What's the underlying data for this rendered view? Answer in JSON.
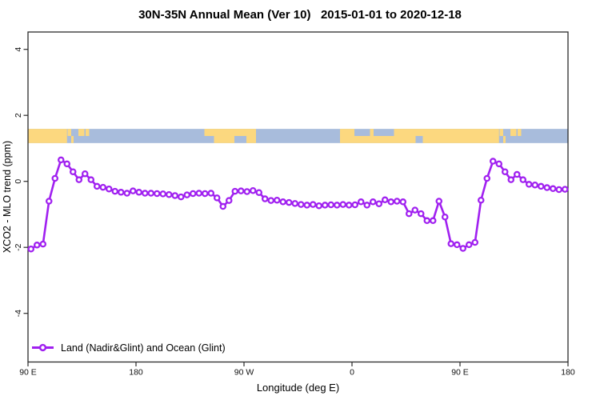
{
  "title": "30N-35N Annual Mean (Ver 10)   2015-01-01 to 2020-12-18",
  "axes": {
    "x_label": "Longitude (deg E)",
    "y_label": "XCO2 - MLO trend (ppm)"
  },
  "legend": {
    "label": "Land (Nadir&Glint) and Ocean (Glint)"
  },
  "colors": {
    "line": "#A020F0",
    "marker_fill": "#FFFFFF",
    "land": "#FCD87F",
    "ocean": "#A8BCDC",
    "axis": "#2B2B2B",
    "text": "#000000"
  },
  "chart_data": {
    "type": "line",
    "title": "30N-35N Annual Mean (Ver 10)   2015-01-01 to 2020-12-18",
    "xlabel": "Longitude (deg E)",
    "ylabel": "XCO2 - MLO trend (ppm)",
    "xlim": [
      90,
      540
    ],
    "ylim": [
      -5.4,
      4.5
    ],
    "x_tick_positions": [
      90,
      180,
      270,
      360,
      450,
      540
    ],
    "x_tick_labels": [
      "90 E",
      "180",
      "90 W",
      "0",
      "90 E",
      "180"
    ],
    "y_ticks": [
      -4,
      -2,
      0,
      2,
      4
    ],
    "grid": false,
    "legend_position": "bottom-left",
    "x_start_deg_east": 92.5,
    "x_step_deg": 5,
    "marker": "open-circle",
    "series": [
      {
        "name": "Land (Nadir&Glint) and Ocean (Glint)",
        "values": [
          -2.05,
          -1.93,
          -1.9,
          -0.6,
          0.09,
          0.65,
          0.53,
          0.29,
          0.05,
          0.23,
          0.05,
          -0.15,
          -0.18,
          -0.23,
          -0.3,
          -0.33,
          -0.36,
          -0.29,
          -0.33,
          -0.36,
          -0.36,
          -0.37,
          -0.38,
          -0.4,
          -0.43,
          -0.47,
          -0.41,
          -0.37,
          -0.36,
          -0.37,
          -0.36,
          -0.5,
          -0.76,
          -0.58,
          -0.3,
          -0.29,
          -0.31,
          -0.28,
          -0.34,
          -0.53,
          -0.58,
          -0.57,
          -0.62,
          -0.64,
          -0.67,
          -0.7,
          -0.72,
          -0.7,
          -0.74,
          -0.72,
          -0.71,
          -0.72,
          -0.7,
          -0.72,
          -0.71,
          -0.62,
          -0.72,
          -0.62,
          -0.68,
          -0.56,
          -0.62,
          -0.6,
          -0.62,
          -0.98,
          -0.87,
          -0.98,
          -1.19,
          -1.19,
          -0.6,
          -1.08,
          -1.89,
          -1.92,
          -2.03,
          -1.92,
          -1.85,
          -0.57,
          0.09,
          0.61,
          0.53,
          0.29,
          0.05,
          0.21,
          0.05,
          -0.09,
          -0.11,
          -0.15,
          -0.19,
          -0.22,
          -0.25,
          -0.24
        ]
      }
    ],
    "map_band": {
      "description": "coastline strip for 30N-35N latitude band, top=35N bottom=30N",
      "y_range": [
        1.16,
        1.59
      ],
      "ocean_color": "#A8BCDC",
      "land_color": "#FCD87F",
      "land_segments": [
        {
          "from": 90,
          "to": 122.5,
          "part": "full"
        },
        {
          "from": 123,
          "to": 126,
          "part": "top"
        },
        {
          "from": 126,
          "to": 128,
          "part": "bottom"
        },
        {
          "from": 132,
          "to": 137,
          "part": "top"
        },
        {
          "from": 138,
          "to": 141,
          "part": "top"
        },
        {
          "from": 237,
          "to": 241,
          "part": "top"
        },
        {
          "from": 241,
          "to": 280,
          "part": "top"
        },
        {
          "from": 245,
          "to": 262,
          "part": "bottom"
        },
        {
          "from": 272,
          "to": 280,
          "part": "bottom"
        },
        {
          "from": 350,
          "to": 362,
          "part": "full"
        },
        {
          "from": 362,
          "to": 375,
          "part": "bottom"
        },
        {
          "from": 375,
          "to": 378,
          "part": "full"
        },
        {
          "from": 378,
          "to": 395,
          "part": "bottom"
        },
        {
          "from": 395,
          "to": 413,
          "part": "full"
        },
        {
          "from": 413,
          "to": 419,
          "part": "top"
        },
        {
          "from": 419,
          "to": 482.5,
          "part": "full"
        },
        {
          "from": 483,
          "to": 486,
          "part": "top"
        },
        {
          "from": 486,
          "to": 488,
          "part": "bottom"
        },
        {
          "from": 492,
          "to": 497,
          "part": "top"
        },
        {
          "from": 498,
          "to": 501,
          "part": "top"
        }
      ]
    }
  }
}
